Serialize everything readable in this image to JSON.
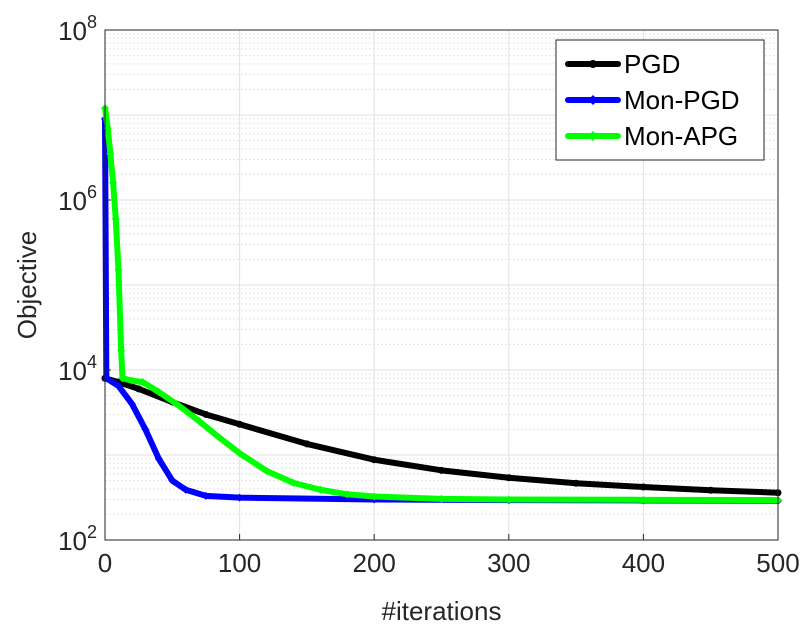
{
  "chart_data": {
    "type": "line",
    "title": "",
    "xlabel": "#iterations",
    "ylabel": "Objective",
    "xlim": [
      0,
      500
    ],
    "ylim": [
      100,
      100000000
    ],
    "yscale": "log",
    "grid": true,
    "legend_position": "top-right",
    "xticks": [
      0,
      100,
      200,
      300,
      400,
      500
    ],
    "x_tick_labels": [
      "0",
      "100",
      "200",
      "300",
      "400",
      "500"
    ],
    "y_tick_labels": [
      {
        "base": "10",
        "exp": "2",
        "value": 100
      },
      {
        "base": "10",
        "exp": "4",
        "value": 10000
      },
      {
        "base": "10",
        "exp": "6",
        "value": 1000000
      },
      {
        "base": "10",
        "exp": "8",
        "value": 100000000
      }
    ],
    "series": [
      {
        "name": "PGD",
        "color": "#000000",
        "marker": "dot",
        "points": [
          [
            0,
            8000
          ],
          [
            10,
            7200
          ],
          [
            25,
            6000
          ],
          [
            50,
            4200
          ],
          [
            75,
            3000
          ],
          [
            100,
            2300
          ],
          [
            150,
            1350
          ],
          [
            200,
            880
          ],
          [
            250,
            660
          ],
          [
            300,
            540
          ],
          [
            350,
            465
          ],
          [
            400,
            420
          ],
          [
            450,
            385
          ],
          [
            500,
            360
          ]
        ]
      },
      {
        "name": "Mon-PGD",
        "color": "#0000ff",
        "marker": "diamond",
        "points": [
          [
            0,
            9000000
          ],
          [
            1,
            8000
          ],
          [
            10,
            6500
          ],
          [
            20,
            4000
          ],
          [
            30,
            2000
          ],
          [
            40,
            900
          ],
          [
            50,
            500
          ],
          [
            60,
            390
          ],
          [
            75,
            330
          ],
          [
            100,
            315
          ],
          [
            200,
            300
          ],
          [
            300,
            295
          ],
          [
            400,
            292
          ],
          [
            500,
            290
          ]
        ]
      },
      {
        "name": "Mon-APG",
        "color": "#00ff00",
        "marker": "diamond",
        "points": [
          [
            0,
            12000000
          ],
          [
            2,
            7000000
          ],
          [
            4,
            3500000
          ],
          [
            6,
            1600000
          ],
          [
            8,
            600000
          ],
          [
            10,
            150000
          ],
          [
            12,
            17000
          ],
          [
            13,
            8000
          ],
          [
            20,
            7500
          ],
          [
            28,
            7200
          ],
          [
            40,
            5500
          ],
          [
            55,
            3800
          ],
          [
            70,
            2500
          ],
          [
            85,
            1600
          ],
          [
            100,
            1050
          ],
          [
            120,
            650
          ],
          [
            140,
            470
          ],
          [
            160,
            390
          ],
          [
            180,
            345
          ],
          [
            200,
            325
          ],
          [
            250,
            305
          ],
          [
            300,
            300
          ],
          [
            400,
            297
          ],
          [
            500,
            295
          ]
        ]
      }
    ]
  }
}
